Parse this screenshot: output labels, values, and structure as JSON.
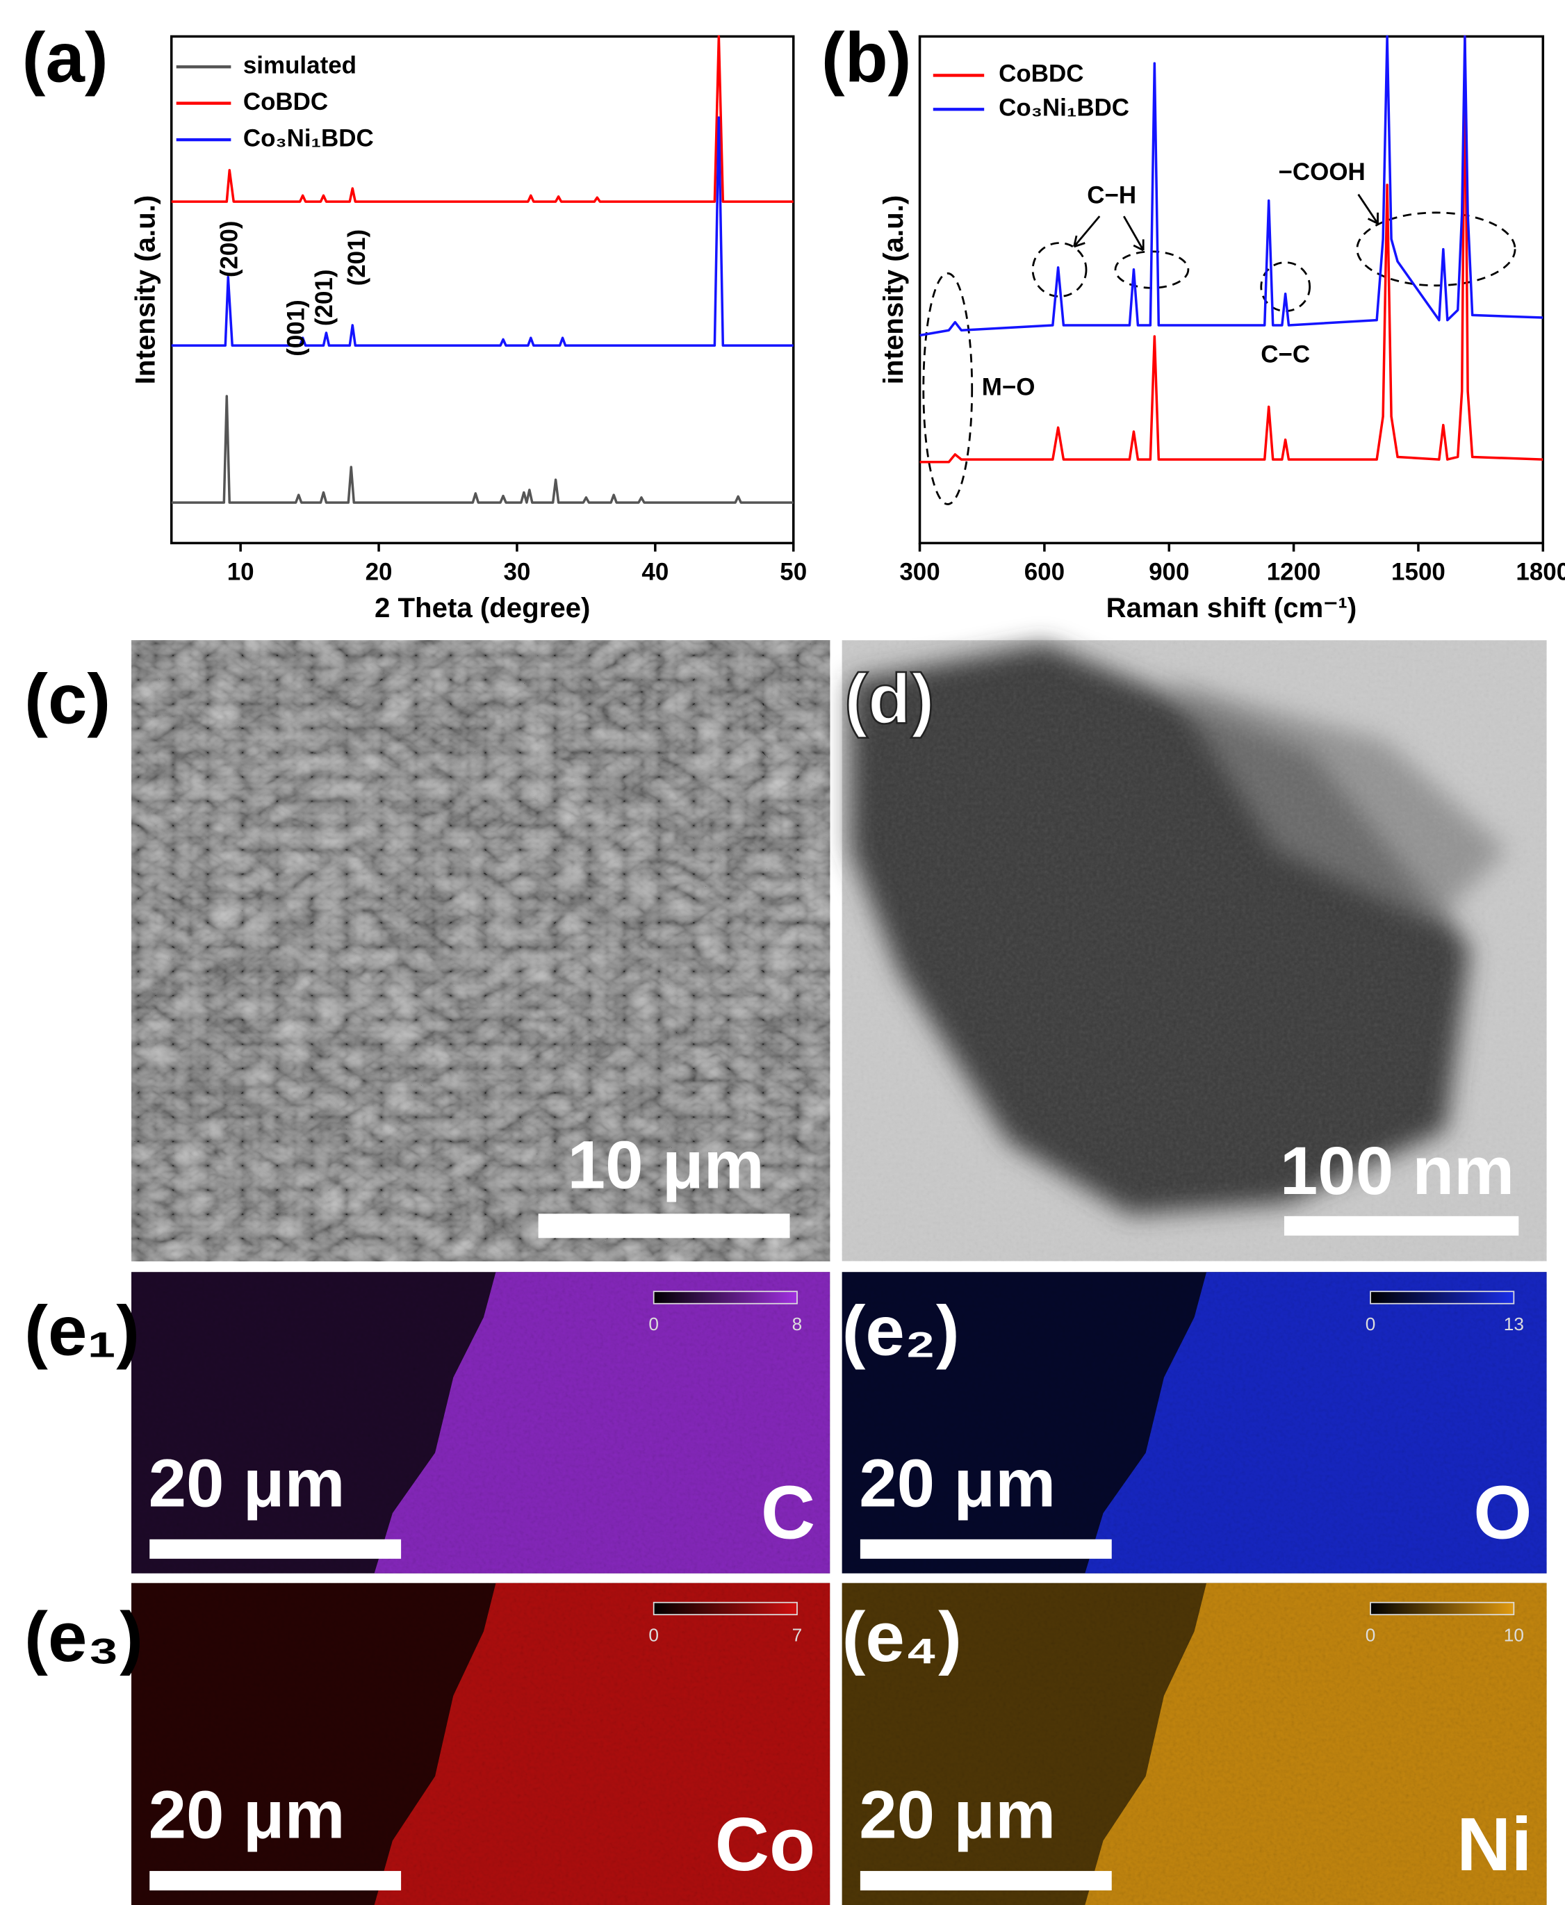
{
  "chart_data": [
    {
      "type": "line",
      "panel_label": "(a)",
      "xlabel": "2 Theta (degree)",
      "ylabel": "Intensity (a.u.)",
      "xlim": [
        5,
        50
      ],
      "xticks": [
        10,
        20,
        30,
        40,
        50
      ],
      "ylim": [
        0,
        100
      ],
      "legend": "upper left",
      "series": [
        {
          "name": "simulated",
          "color": "#555555",
          "x": [
            5,
            8.8,
            9.0,
            9.2,
            14.0,
            14.2,
            14.4,
            15.8,
            16.0,
            16.2,
            17.8,
            18.0,
            18.2,
            26.8,
            27.0,
            27.2,
            28.8,
            29.0,
            29.2,
            30.3,
            30.5,
            30.7,
            30.9,
            31.1,
            32.6,
            32.8,
            33.0,
            34.8,
            35.0,
            35.2,
            36.8,
            37.0,
            37.2,
            38.8,
            39.0,
            39.2,
            45.8,
            46.0,
            46.2,
            50
          ],
          "values": [
            8,
            8,
            29,
            8,
            8,
            9.5,
            8,
            8,
            10,
            8,
            8,
            15,
            8,
            8,
            9.8,
            8,
            8,
            9.3,
            8,
            8,
            10,
            8,
            10.5,
            8,
            8,
            12.5,
            8,
            8,
            9,
            8,
            8,
            9.5,
            8,
            8,
            9,
            8,
            8,
            9.2,
            8,
            8
          ]
        },
        {
          "name": "CoBDC",
          "color": "#ff0000",
          "x": [
            5,
            9.0,
            9.2,
            9.5,
            14.3,
            14.5,
            14.7,
            15.8,
            16.0,
            16.2,
            17.9,
            18.1,
            18.3,
            30.8,
            31.0,
            31.2,
            32.8,
            33.0,
            33.2,
            35.6,
            35.8,
            36.0,
            44.3,
            44.6,
            44.9,
            50
          ],
          "values": [
            67.4,
            67.4,
            73.6,
            67.4,
            67.4,
            68.6,
            67.4,
            67.4,
            68.6,
            67.4,
            67.4,
            70,
            67.4,
            67.4,
            68.6,
            67.4,
            67.4,
            68.4,
            67.4,
            67.4,
            68.2,
            67.4,
            67.4,
            100,
            67.4,
            67.4
          ]
        },
        {
          "name": "Co₃Ni₁BDC",
          "color": "#1414ff",
          "x": [
            5,
            8.9,
            9.1,
            9.4,
            14.3,
            14.5,
            14.7,
            16.0,
            16.2,
            16.4,
            17.9,
            18.1,
            18.3,
            28.8,
            29.0,
            29.2,
            30.8,
            31.0,
            31.2,
            33.1,
            33.3,
            33.5,
            44.3,
            44.6,
            44.9,
            50
          ],
          "values": [
            39,
            39,
            52.5,
            39,
            39,
            40.5,
            39,
            39,
            41.5,
            39,
            39,
            43,
            39,
            39,
            40.2,
            39,
            39,
            40.5,
            39,
            39,
            40.5,
            39,
            39,
            84,
            39,
            39
          ]
        }
      ],
      "annotations": [
        "(200)",
        "(001)",
        "(201)",
        "(201)"
      ]
    },
    {
      "type": "line",
      "panel_label": "(b)",
      "xlabel": "Raman shift (cm⁻¹)",
      "ylabel": "intensity (a.u.)",
      "xlim": [
        300,
        1800
      ],
      "xticks": [
        300,
        600,
        900,
        1200,
        1500,
        1800
      ],
      "ylim": [
        0,
        100
      ],
      "legend": "upper left",
      "x": [
        300,
        370,
        385,
        400,
        620,
        633,
        646,
        805,
        815,
        825,
        855,
        865,
        875,
        1130,
        1140,
        1150,
        1172,
        1180,
        1188,
        1400,
        1415,
        1425,
        1435,
        1450,
        1550,
        1560,
        1570,
        1595,
        1605,
        1612,
        1619,
        1630,
        1800
      ],
      "series": [
        {
          "name": "CoBDC",
          "color": "#ff0000",
          "values": [
            16,
            16,
            17.5,
            16.5,
            16.5,
            22.8,
            16.5,
            16.5,
            22,
            16.5,
            16.5,
            40.8,
            16.5,
            16.5,
            26.9,
            16.5,
            16.5,
            20.4,
            16.5,
            16.5,
            25,
            70.7,
            25,
            17,
            16.5,
            23.3,
            16.5,
            17,
            30,
            100,
            30,
            17,
            16.5
          ]
        },
        {
          "name": "Co₃Ni₁BDC",
          "color": "#1414ff",
          "values": [
            41,
            42,
            43.6,
            42,
            43,
            54.4,
            43,
            43,
            54,
            43,
            43,
            94.7,
            43,
            43,
            67.6,
            43,
            43,
            49.2,
            43,
            44,
            60,
            100,
            60,
            55.6,
            44,
            58,
            44,
            46,
            65,
            100,
            65,
            45,
            44.5
          ]
        }
      ],
      "annotations": [
        "C−H",
        "−COOH",
        "C−C",
        "M−O"
      ]
    }
  ],
  "panels": [
    {
      "label": "(c)",
      "scale_bar": "10 μm"
    },
    {
      "label": "(d)",
      "scale_bar": "100 nm"
    }
  ],
  "maps": [
    {
      "label": "(e₁)",
      "element": "C",
      "scale_bar": "20 μm",
      "colorbar": [
        0,
        8
      ],
      "color": "#a030e0"
    },
    {
      "label": "(e₂)",
      "element": "O",
      "scale_bar": "20 μm",
      "colorbar": [
        0,
        13
      ],
      "color": "#1a2ee8"
    },
    {
      "label": "(e₃)",
      "element": "Co",
      "scale_bar": "20 μm",
      "colorbar": [
        0,
        7
      ],
      "color": "#d01010"
    },
    {
      "label": "(e₄)",
      "element": "Ni",
      "scale_bar": "20 μm",
      "colorbar": [
        0,
        10
      ],
      "color": "#e09a10"
    }
  ]
}
